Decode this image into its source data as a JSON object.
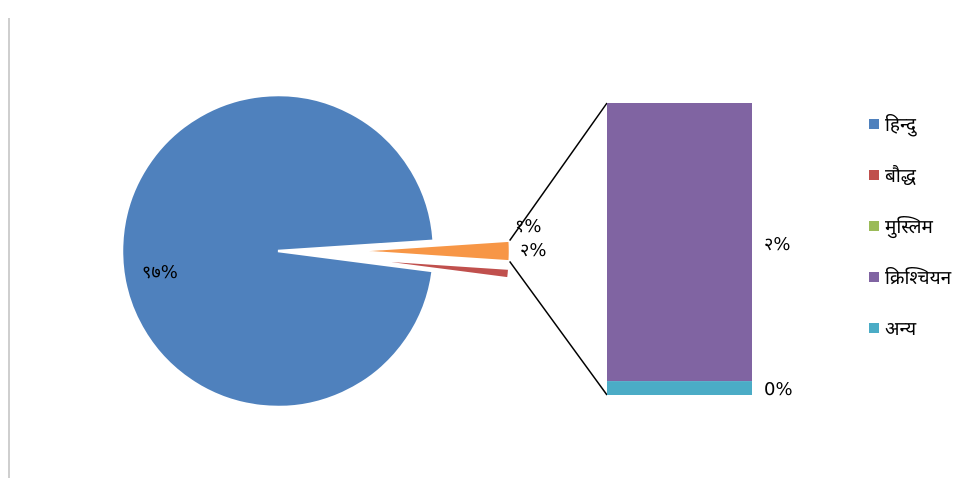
{
  "chart_data": {
    "type": "pie",
    "subtype": "bar-of-pie",
    "title": "",
    "legend_position": "right",
    "colors": {
      "hindu": "#4F81BD",
      "buddhist": "#C0504D",
      "muslim": "#9BBB59",
      "christian": "#8064A2",
      "other": "#4BACC6",
      "secondary_group": "#F79646"
    },
    "series": [
      {
        "key": "hindu",
        "name": "हिन्दु",
        "value": 97,
        "label": "९७%"
      },
      {
        "key": "buddhist",
        "name": "बौद्ध",
        "value": 1,
        "label": "१%"
      },
      {
        "key": "muslim",
        "name": "मुस्लिम",
        "value": 0,
        "label": ""
      },
      {
        "key": "christian",
        "name": "क्रिश्चियन",
        "value": 2,
        "label": "२%"
      },
      {
        "key": "other",
        "name": "अन्य",
        "value": 0.1,
        "label": "0%"
      }
    ],
    "secondary_group_label": "२%",
    "secondary_members": [
      "christian",
      "other"
    ]
  }
}
